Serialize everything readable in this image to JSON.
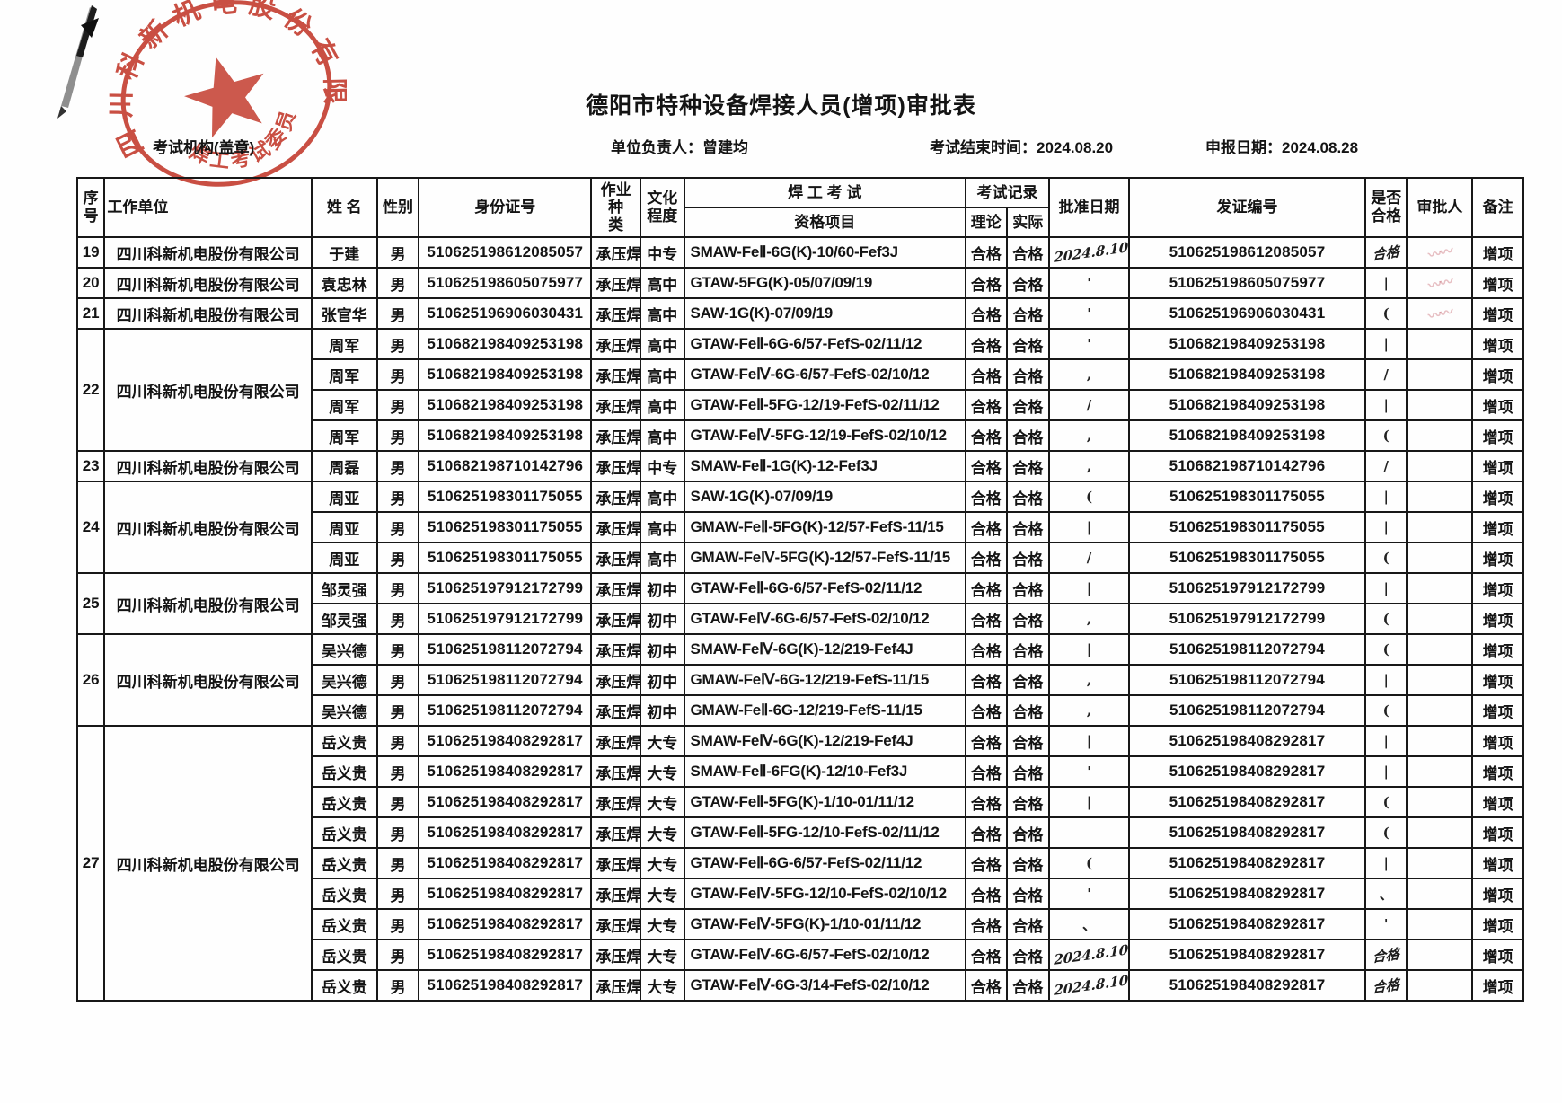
{
  "page": {
    "title": "德阳市特种设备焊接人员(增项)审批表",
    "meta": {
      "org_label": "考试机构(盖章)",
      "manager_label": "单位负责人：",
      "manager_value": "曾建均",
      "exam_end_label": "考试结束时间：",
      "exam_end_value": "2024.08.20",
      "declare_label": "申报日期：",
      "declare_value": "2024.08.28"
    },
    "stamp": {
      "company": "四川科新机电股份有限公司",
      "committee": "焊工考试委员会",
      "color": "#c2382a"
    }
  },
  "table": {
    "headers": {
      "seq": "序号",
      "company": "工作单位",
      "name": "姓  名",
      "gender": "性别",
      "id": "身份证号",
      "job": "作业种\n类",
      "edu": "文化\n程度",
      "exam": "焊 工 考 试",
      "item": "资格项目",
      "record": "考试记录",
      "theory": "理论",
      "practice": "实际",
      "approve_date": "批准日期",
      "cert_no": "发证编号",
      "qualified": "是否\n合格",
      "approver": "审批人",
      "remark": "备注"
    },
    "groups": [
      {
        "seq": "19",
        "company": "四川科新机电股份有限公司",
        "rows": [
          {
            "name": "于建",
            "gender": "男",
            "id": "510625198612085057",
            "job": "承压焊",
            "edu": "中专",
            "item": "SMAW-FeⅡ-6G(K)-10/60-Fef3J",
            "theory": "合格",
            "practice": "合格",
            "date": "2024.8.10",
            "date_hand": true,
            "cert": "510625198612085057",
            "qual": "合格",
            "qual_hand": true,
            "approver": "scribble",
            "remark": "增项"
          }
        ]
      },
      {
        "seq": "20",
        "company": "四川科新机电股份有限公司",
        "rows": [
          {
            "name": "袁忠林",
            "gender": "男",
            "id": "510625198605075977",
            "job": "承压焊",
            "edu": "高中",
            "item": "GTAW-5FG(K)-05/07/09/19",
            "theory": "合格",
            "practice": "合格",
            "date": "'",
            "cert": "510625198605075977",
            "qual": "|",
            "approver": "scribble",
            "remark": "增项"
          }
        ]
      },
      {
        "seq": "21",
        "company": "四川科新机电股份有限公司",
        "rows": [
          {
            "name": "张官华",
            "gender": "男",
            "id": "510625196906030431",
            "job": "承压焊",
            "edu": "高中",
            "item": "SAW-1G(K)-07/09/19",
            "theory": "合格",
            "practice": "合格",
            "date": "'",
            "cert": "510625196906030431",
            "qual": "(",
            "approver": "scribble",
            "remark": "增项"
          }
        ]
      },
      {
        "seq": "22",
        "company": "四川科新机电股份有限公司",
        "rows": [
          {
            "name": "周军",
            "gender": "男",
            "id": "510682198409253198",
            "job": "承压焊",
            "edu": "高中",
            "item": "GTAW-FeⅡ-6G-6/57-FefS-02/11/12",
            "theory": "合格",
            "practice": "合格",
            "date": "'",
            "cert": "510682198409253198",
            "qual": "|",
            "approver": "",
            "remark": "增项"
          },
          {
            "name": "周军",
            "gender": "男",
            "id": "510682198409253198",
            "job": "承压焊",
            "edu": "高中",
            "item": "GTAW-FeⅣ-6G-6/57-FefS-02/10/12",
            "theory": "合格",
            "practice": "合格",
            "date": ",",
            "cert": "510682198409253198",
            "qual": "/",
            "approver": "",
            "remark": "增项"
          },
          {
            "name": "周军",
            "gender": "男",
            "id": "510682198409253198",
            "job": "承压焊",
            "edu": "高中",
            "item": "GTAW-FeⅡ-5FG-12/19-FefS-02/11/12",
            "theory": "合格",
            "practice": "合格",
            "date": "/",
            "cert": "510682198409253198",
            "qual": "|",
            "approver": "",
            "remark": "增项"
          },
          {
            "name": "周军",
            "gender": "男",
            "id": "510682198409253198",
            "job": "承压焊",
            "edu": "高中",
            "item": "GTAW-FeⅣ-5FG-12/19-FefS-02/10/12",
            "theory": "合格",
            "practice": "合格",
            "date": ",",
            "cert": "510682198409253198",
            "qual": "(",
            "approver": "",
            "remark": "增项"
          }
        ]
      },
      {
        "seq": "23",
        "company": "四川科新机电股份有限公司",
        "rows": [
          {
            "name": "周磊",
            "gender": "男",
            "id": "510682198710142796",
            "job": "承压焊",
            "edu": "中专",
            "item": "SMAW-FeⅡ-1G(K)-12-Fef3J",
            "theory": "合格",
            "practice": "合格",
            "date": ",",
            "cert": "510682198710142796",
            "qual": "/",
            "approver": "",
            "remark": "增项"
          }
        ]
      },
      {
        "seq": "24",
        "company": "四川科新机电股份有限公司",
        "rows": [
          {
            "name": "周亚",
            "gender": "男",
            "id": "510625198301175055",
            "job": "承压焊",
            "edu": "高中",
            "item": "SAW-1G(K)-07/09/19",
            "theory": "合格",
            "practice": "合格",
            "date": "(",
            "cert": "510625198301175055",
            "qual": "|",
            "approver": "",
            "remark": "增项"
          },
          {
            "name": "周亚",
            "gender": "男",
            "id": "510625198301175055",
            "job": "承压焊",
            "edu": "高中",
            "item": "GMAW-FeⅡ-5FG(K)-12/57-FefS-11/15",
            "theory": "合格",
            "practice": "合格",
            "date": "|",
            "cert": "510625198301175055",
            "qual": "|",
            "approver": "",
            "remark": "增项"
          },
          {
            "name": "周亚",
            "gender": "男",
            "id": "510625198301175055",
            "job": "承压焊",
            "edu": "高中",
            "item": "GMAW-FeⅣ-5FG(K)-12/57-FefS-11/15",
            "theory": "合格",
            "practice": "合格",
            "date": "/",
            "cert": "510625198301175055",
            "qual": "(",
            "approver": "",
            "remark": "增项"
          }
        ]
      },
      {
        "seq": "25",
        "company": "四川科新机电股份有限公司",
        "rows": [
          {
            "name": "邹灵强",
            "gender": "男",
            "id": "510625197912172799",
            "job": "承压焊",
            "edu": "初中",
            "item": "GTAW-FeⅡ-6G-6/57-FefS-02/11/12",
            "theory": "合格",
            "practice": "合格",
            "date": "|",
            "cert": "510625197912172799",
            "qual": "|",
            "approver": "",
            "remark": "增项"
          },
          {
            "name": "邹灵强",
            "gender": "男",
            "id": "510625197912172799",
            "job": "承压焊",
            "edu": "初中",
            "item": "GTAW-FeⅣ-6G-6/57-FefS-02/10/12",
            "theory": "合格",
            "practice": "合格",
            "date": ",",
            "cert": "510625197912172799",
            "qual": "(",
            "approver": "",
            "remark": "增项"
          }
        ]
      },
      {
        "seq": "26",
        "company": "四川科新机电股份有限公司",
        "rows": [
          {
            "name": "吴兴德",
            "gender": "男",
            "id": "510625198112072794",
            "job": "承压焊",
            "edu": "初中",
            "item": "SMAW-FeⅣ-6G(K)-12/219-Fef4J",
            "theory": "合格",
            "practice": "合格",
            "date": "|",
            "cert": "510625198112072794",
            "qual": "(",
            "approver": "",
            "remark": "增项"
          },
          {
            "name": "吴兴德",
            "gender": "男",
            "id": "510625198112072794",
            "job": "承压焊",
            "edu": "初中",
            "item": "GMAW-FeⅣ-6G-12/219-FefS-11/15",
            "theory": "合格",
            "practice": "合格",
            "date": ",",
            "cert": "510625198112072794",
            "qual": "|",
            "approver": "",
            "remark": "增项"
          },
          {
            "name": "吴兴德",
            "gender": "男",
            "id": "510625198112072794",
            "job": "承压焊",
            "edu": "初中",
            "item": "GMAW-FeⅡ-6G-12/219-FefS-11/15",
            "theory": "合格",
            "practice": "合格",
            "date": ",",
            "cert": "510625198112072794",
            "qual": "(",
            "approver": "",
            "remark": "增项"
          }
        ]
      },
      {
        "seq": "27",
        "company": "四川科新机电股份有限公司",
        "rows": [
          {
            "name": "岳义贵",
            "gender": "男",
            "id": "510625198408292817",
            "job": "承压焊",
            "edu": "大专",
            "item": "SMAW-FeⅣ-6G(K)-12/219-Fef4J",
            "theory": "合格",
            "practice": "合格",
            "date": "|",
            "cert": "510625198408292817",
            "qual": "|",
            "approver": "",
            "remark": "增项"
          },
          {
            "name": "岳义贵",
            "gender": "男",
            "id": "510625198408292817",
            "job": "承压焊",
            "edu": "大专",
            "item": "SMAW-FeⅡ-6FG(K)-12/10-Fef3J",
            "theory": "合格",
            "practice": "合格",
            "date": "'",
            "cert": "510625198408292817",
            "qual": "|",
            "approver": "",
            "remark": "增项"
          },
          {
            "name": "岳义贵",
            "gender": "男",
            "id": "510625198408292817",
            "job": "承压焊",
            "edu": "大专",
            "item": "GTAW-FeⅡ-5FG(K)-1/10-01/11/12",
            "theory": "合格",
            "practice": "合格",
            "date": "|",
            "cert": "510625198408292817",
            "qual": "(",
            "approver": "",
            "remark": "增项"
          },
          {
            "name": "岳义贵",
            "gender": "男",
            "id": "510625198408292817",
            "job": "承压焊",
            "edu": "大专",
            "item": "GTAW-FeⅡ-5FG-12/10-FefS-02/11/12",
            "theory": "合格",
            "practice": "合格",
            "date": "",
            "cert": "510625198408292817",
            "qual": "(",
            "approver": "",
            "remark": "增项"
          },
          {
            "name": "岳义贵",
            "gender": "男",
            "id": "510625198408292817",
            "job": "承压焊",
            "edu": "大专",
            "item": "GTAW-FeⅡ-6G-6/57-FefS-02/11/12",
            "theory": "合格",
            "practice": "合格",
            "date": "(",
            "cert": "510625198408292817",
            "qual": "|",
            "approver": "",
            "remark": "增项"
          },
          {
            "name": "岳义贵",
            "gender": "男",
            "id": "510625198408292817",
            "job": "承压焊",
            "edu": "大专",
            "item": "GTAW-FeⅣ-5FG-12/10-FefS-02/10/12",
            "theory": "合格",
            "practice": "合格",
            "date": "'",
            "cert": "510625198408292817",
            "qual": "、",
            "approver": "",
            "remark": "增项"
          },
          {
            "name": "岳义贵",
            "gender": "男",
            "id": "510625198408292817",
            "job": "承压焊",
            "edu": "大专",
            "item": "GTAW-FeⅣ-5FG(K)-1/10-01/11/12",
            "theory": "合格",
            "practice": "合格",
            "date": "、",
            "cert": "510625198408292817",
            "qual": "'",
            "approver": "",
            "remark": "增项"
          },
          {
            "name": "岳义贵",
            "gender": "男",
            "id": "510625198408292817",
            "job": "承压焊",
            "edu": "大专",
            "item": "GTAW-FeⅣ-6G-6/57-FefS-02/10/12",
            "theory": "合格",
            "practice": "合格",
            "date": "2024.8.10",
            "date_hand": true,
            "cert": "510625198408292817",
            "qual": "合格",
            "qual_hand": true,
            "approver": "",
            "remark": "增项"
          },
          {
            "name": "岳义贵",
            "gender": "男",
            "id": "510625198408292817",
            "job": "承压焊",
            "edu": "大专",
            "item": "GTAW-FeⅣ-6G-3/14-FefS-02/10/12",
            "theory": "合格",
            "practice": "合格",
            "date": "2024.8.10",
            "date_hand": true,
            "cert": "510625198408292817",
            "qual": "合格",
            "qual_hand": true,
            "approver": "",
            "remark": "增项"
          }
        ]
      }
    ]
  }
}
